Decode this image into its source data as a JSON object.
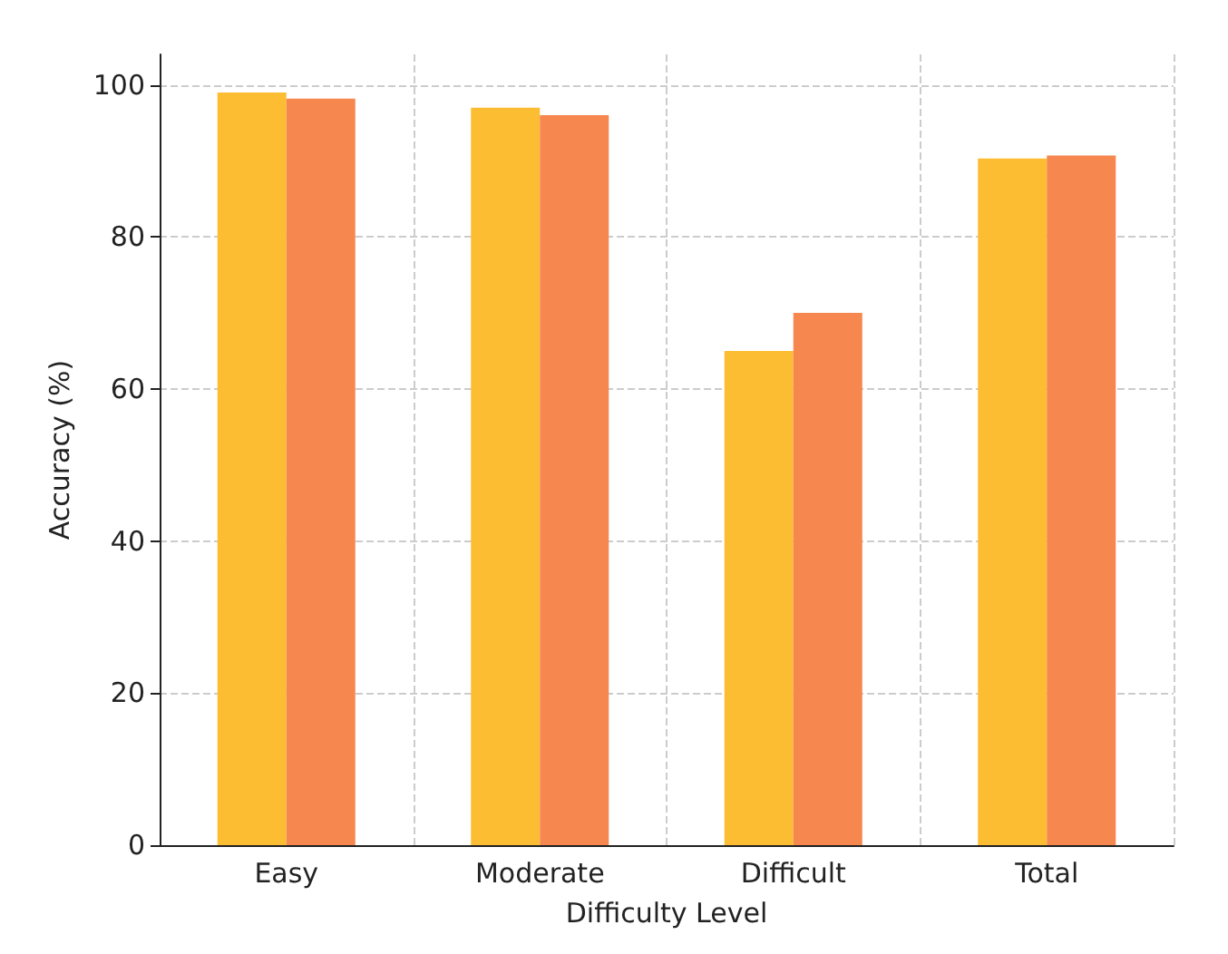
{
  "chart_data": {
    "type": "bar",
    "xlabel": "Difficulty Level",
    "ylabel": "Accuracy (%)",
    "categories": [
      "Easy",
      "Moderate",
      "Difficult",
      "Total"
    ],
    "series": [
      {
        "color": "#fdbd33",
        "values": [
          99,
          97,
          65,
          90.3
        ]
      },
      {
        "color": "#f5874f",
        "values": [
          98.2,
          96,
          70,
          90.7
        ]
      }
    ],
    "ylim": [
      0,
      104
    ],
    "yticks": [
      0,
      20,
      40,
      60,
      80,
      100
    ],
    "grid": true
  }
}
